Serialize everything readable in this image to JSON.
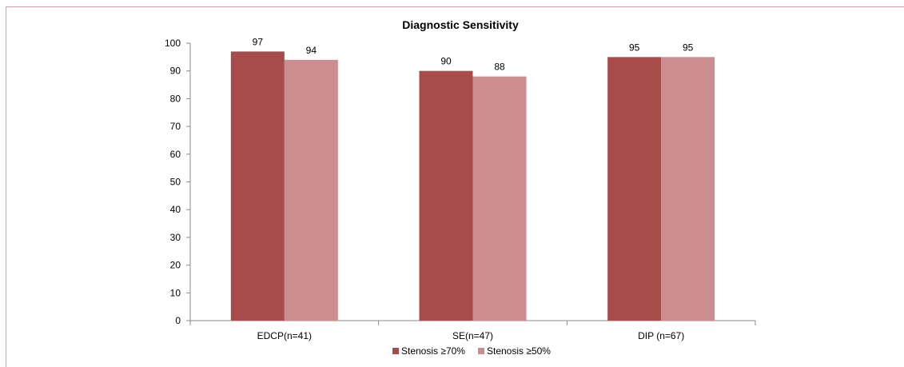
{
  "chart_data": {
    "type": "bar",
    "title": "Diagnostic  Sensitivity",
    "xlabel": "",
    "ylabel": "",
    "categories": [
      "EDCP(n=41)",
      "SE(n=47)",
      "DIP (n=67)"
    ],
    "series": [
      {
        "name": "Stenosis ≥70%",
        "values": [
          97,
          90,
          95
        ],
        "color": "#a84b4b"
      },
      {
        "name": "Stenosis ≥50%",
        "values": [
          94,
          88,
          95
        ],
        "color": "#cc8d8e"
      }
    ],
    "ylim": [
      0,
      100
    ],
    "yticks": [
      "0",
      "10",
      "20",
      "30",
      "40",
      "50",
      "60",
      "70",
      "80",
      "90",
      "100"
    ],
    "grid": false,
    "legend_position": "bottom"
  }
}
